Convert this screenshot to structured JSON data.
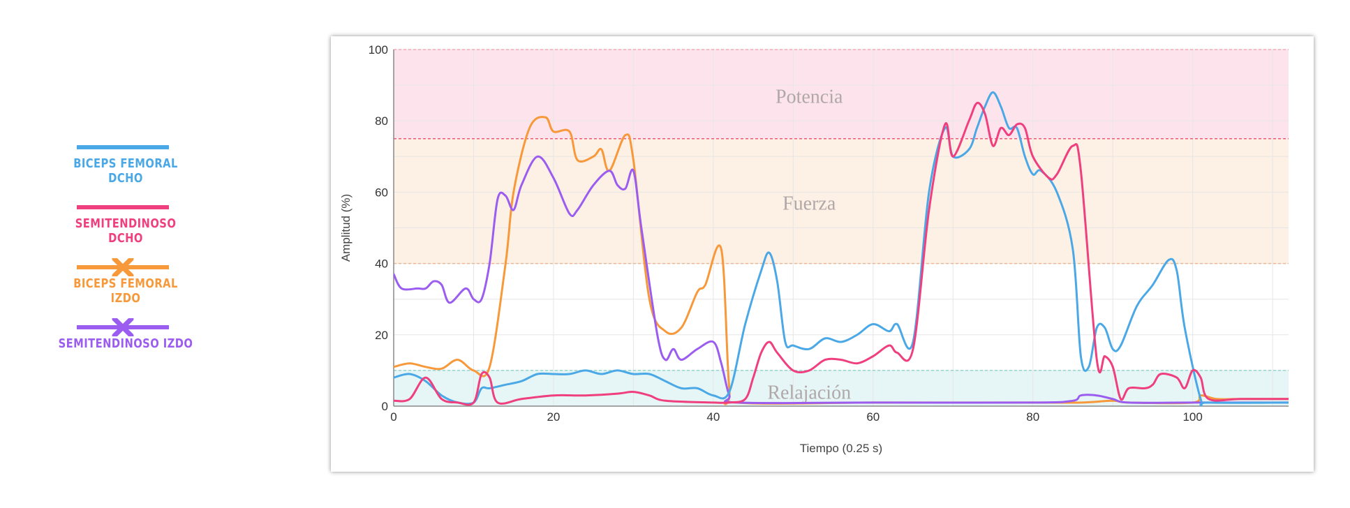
{
  "legend": [
    {
      "label": "BICEPS FEMORAL DCHO",
      "color": "#4aa8e6",
      "marker": "none"
    },
    {
      "label": "SEMITENDINOSO DCHO",
      "color": "#ef3f7e",
      "marker": "none"
    },
    {
      "label": "BICEPS FEMORAL IZDO",
      "color": "#f7993a",
      "marker": "x"
    },
    {
      "label": "SEMITENDINOSO IZDO",
      "color": "#9b5cf0",
      "marker": "x"
    }
  ],
  "chart_data": {
    "type": "line",
    "xlabel": "Tiempo (0.25 s)",
    "ylabel": "Amplitud (%)",
    "xlim": [
      0,
      112
    ],
    "ylim": [
      0,
      100
    ],
    "xticks": [
      0,
      20,
      40,
      60,
      80,
      100
    ],
    "yticks": [
      0,
      20,
      40,
      60,
      80,
      100
    ],
    "grid": true,
    "zones": [
      {
        "name": "Potencia",
        "from": 75,
        "to": 100,
        "fill": "#fde4ec",
        "line": "#ef5a7a",
        "label_x": 52,
        "label_y": 87
      },
      {
        "name": "Fuerza",
        "from": 40,
        "to": 75,
        "fill": "#fdf0e4",
        "line": "#f0b890",
        "label_x": 52,
        "label_y": 57
      },
      {
        "name": "Relajación",
        "from": 0,
        "to": 10,
        "fill": "#e6f6f6",
        "line": "#8fd6cf",
        "label_x": 52,
        "label_y": 4
      }
    ],
    "series": [
      {
        "name": "BICEPS FEMORAL IZDO",
        "color": "#f7993a",
        "points": [
          [
            0,
            11
          ],
          [
            2,
            12
          ],
          [
            4,
            11
          ],
          [
            6,
            10.5
          ],
          [
            8,
            13
          ],
          [
            10,
            10
          ],
          [
            12,
            11
          ],
          [
            14,
            40
          ],
          [
            15,
            60
          ],
          [
            17,
            78
          ],
          [
            19,
            81
          ],
          [
            20,
            77
          ],
          [
            22,
            77
          ],
          [
            23,
            69
          ],
          [
            25,
            70
          ],
          [
            26,
            72
          ],
          [
            27,
            66
          ],
          [
            29,
            76
          ],
          [
            30,
            69
          ],
          [
            32,
            30
          ],
          [
            34,
            21
          ],
          [
            36,
            22
          ],
          [
            38,
            32
          ],
          [
            39,
            34
          ],
          [
            41,
            44
          ],
          [
            42,
            5
          ],
          [
            43,
            1
          ],
          [
            60,
            1
          ],
          [
            80,
            1
          ],
          [
            86,
            1
          ],
          [
            90,
            1.5
          ],
          [
            92,
            1
          ],
          [
            100,
            1
          ],
          [
            101,
            3
          ],
          [
            103,
            2
          ],
          [
            106,
            2
          ],
          [
            112,
            2
          ]
        ]
      },
      {
        "name": "SEMITENDINOSO IZDO",
        "color": "#9b5cf0",
        "points": [
          [
            0,
            37
          ],
          [
            1,
            33
          ],
          [
            3,
            33
          ],
          [
            4,
            33
          ],
          [
            5,
            35
          ],
          [
            6,
            34
          ],
          [
            7,
            29
          ],
          [
            9,
            33
          ],
          [
            10,
            30
          ],
          [
            11,
            30
          ],
          [
            12,
            40
          ],
          [
            13,
            58
          ],
          [
            14,
            59
          ],
          [
            15,
            55
          ],
          [
            16,
            62
          ],
          [
            18,
            70
          ],
          [
            20,
            64
          ],
          [
            22,
            54
          ],
          [
            23,
            55
          ],
          [
            25,
            62
          ],
          [
            27,
            66
          ],
          [
            28,
            62
          ],
          [
            29,
            61
          ],
          [
            30,
            66
          ],
          [
            31,
            50
          ],
          [
            33,
            20
          ],
          [
            34,
            13
          ],
          [
            35,
            16
          ],
          [
            36,
            13
          ],
          [
            38,
            16
          ],
          [
            40,
            18
          ],
          [
            41,
            12
          ],
          [
            42,
            3
          ],
          [
            43,
            1
          ],
          [
            60,
            1
          ],
          [
            80,
            1
          ],
          [
            85,
            1.5
          ],
          [
            86,
            3
          ],
          [
            88,
            3
          ],
          [
            90,
            2
          ],
          [
            92,
            1
          ],
          [
            100,
            1
          ],
          [
            112,
            1
          ]
        ]
      },
      {
        "name": "BICEPS FEMORAL DCHO",
        "color": "#4aa8e6",
        "points": [
          [
            0,
            8
          ],
          [
            2,
            9
          ],
          [
            4,
            7
          ],
          [
            6,
            3
          ],
          [
            8,
            1
          ],
          [
            10,
            1
          ],
          [
            11,
            5
          ],
          [
            12,
            5
          ],
          [
            14,
            6
          ],
          [
            16,
            7
          ],
          [
            18,
            9
          ],
          [
            20,
            9
          ],
          [
            22,
            9
          ],
          [
            24,
            10
          ],
          [
            26,
            9
          ],
          [
            28,
            10
          ],
          [
            30,
            9
          ],
          [
            32,
            9
          ],
          [
            34,
            7
          ],
          [
            36,
            5
          ],
          [
            38,
            5
          ],
          [
            40,
            3
          ],
          [
            42,
            4
          ],
          [
            44,
            23
          ],
          [
            46,
            38
          ],
          [
            47,
            43
          ],
          [
            48,
            35
          ],
          [
            49,
            18
          ],
          [
            50,
            17
          ],
          [
            52,
            16
          ],
          [
            54,
            19
          ],
          [
            56,
            18
          ],
          [
            58,
            20
          ],
          [
            60,
            23
          ],
          [
            62,
            21
          ],
          [
            63,
            23
          ],
          [
            65,
            18
          ],
          [
            67,
            60
          ],
          [
            69,
            78
          ],
          [
            70,
            70
          ],
          [
            72,
            72
          ],
          [
            73,
            78
          ],
          [
            74,
            84
          ],
          [
            75,
            88
          ],
          [
            76,
            84
          ],
          [
            77,
            78
          ],
          [
            78,
            78
          ],
          [
            79,
            70
          ],
          [
            80,
            65
          ],
          [
            81,
            66
          ],
          [
            83,
            60
          ],
          [
            85,
            44
          ],
          [
            86,
            14
          ],
          [
            87,
            11
          ],
          [
            88,
            22
          ],
          [
            89,
            22
          ],
          [
            90,
            16
          ],
          [
            91,
            17
          ],
          [
            93,
            28
          ],
          [
            95,
            34
          ],
          [
            97,
            41
          ],
          [
            98,
            38
          ],
          [
            99,
            22
          ],
          [
            101,
            2
          ],
          [
            102,
            1
          ],
          [
            112,
            1
          ]
        ]
      },
      {
        "name": "SEMITENDINOSO DCHO",
        "color": "#ef3f7e",
        "points": [
          [
            0,
            1.5
          ],
          [
            2,
            2
          ],
          [
            4,
            8
          ],
          [
            6,
            2
          ],
          [
            8,
            1
          ],
          [
            10,
            1
          ],
          [
            11,
            9
          ],
          [
            12,
            8
          ],
          [
            13,
            1
          ],
          [
            16,
            2
          ],
          [
            20,
            3
          ],
          [
            24,
            3
          ],
          [
            28,
            3.5
          ],
          [
            30,
            4
          ],
          [
            32,
            3
          ],
          [
            34,
            1.5
          ],
          [
            40,
            1
          ],
          [
            42,
            1
          ],
          [
            44,
            2
          ],
          [
            45,
            8
          ],
          [
            46,
            15
          ],
          [
            47,
            18
          ],
          [
            48,
            15
          ],
          [
            50,
            10
          ],
          [
            52,
            10
          ],
          [
            54,
            13
          ],
          [
            56,
            13
          ],
          [
            58,
            12
          ],
          [
            60,
            14
          ],
          [
            62,
            17
          ],
          [
            63,
            15
          ],
          [
            65,
            16
          ],
          [
            67,
            55
          ],
          [
            69,
            79
          ],
          [
            70,
            70
          ],
          [
            72,
            80
          ],
          [
            73,
            85
          ],
          [
            74,
            82
          ],
          [
            75,
            73
          ],
          [
            76,
            78
          ],
          [
            77,
            76
          ],
          [
            78,
            79
          ],
          [
            79,
            78
          ],
          [
            80,
            70
          ],
          [
            82,
            64
          ],
          [
            83,
            65
          ],
          [
            85,
            73
          ],
          [
            86,
            66
          ],
          [
            88,
            13
          ],
          [
            89,
            14
          ],
          [
            90,
            11
          ],
          [
            91,
            2
          ],
          [
            92,
            5
          ],
          [
            94,
            5
          ],
          [
            95,
            6
          ],
          [
            96,
            9
          ],
          [
            98,
            8
          ],
          [
            99,
            5
          ],
          [
            100,
            10
          ],
          [
            101,
            8
          ],
          [
            102,
            2
          ],
          [
            106,
            2
          ],
          [
            112,
            2
          ]
        ]
      }
    ]
  }
}
